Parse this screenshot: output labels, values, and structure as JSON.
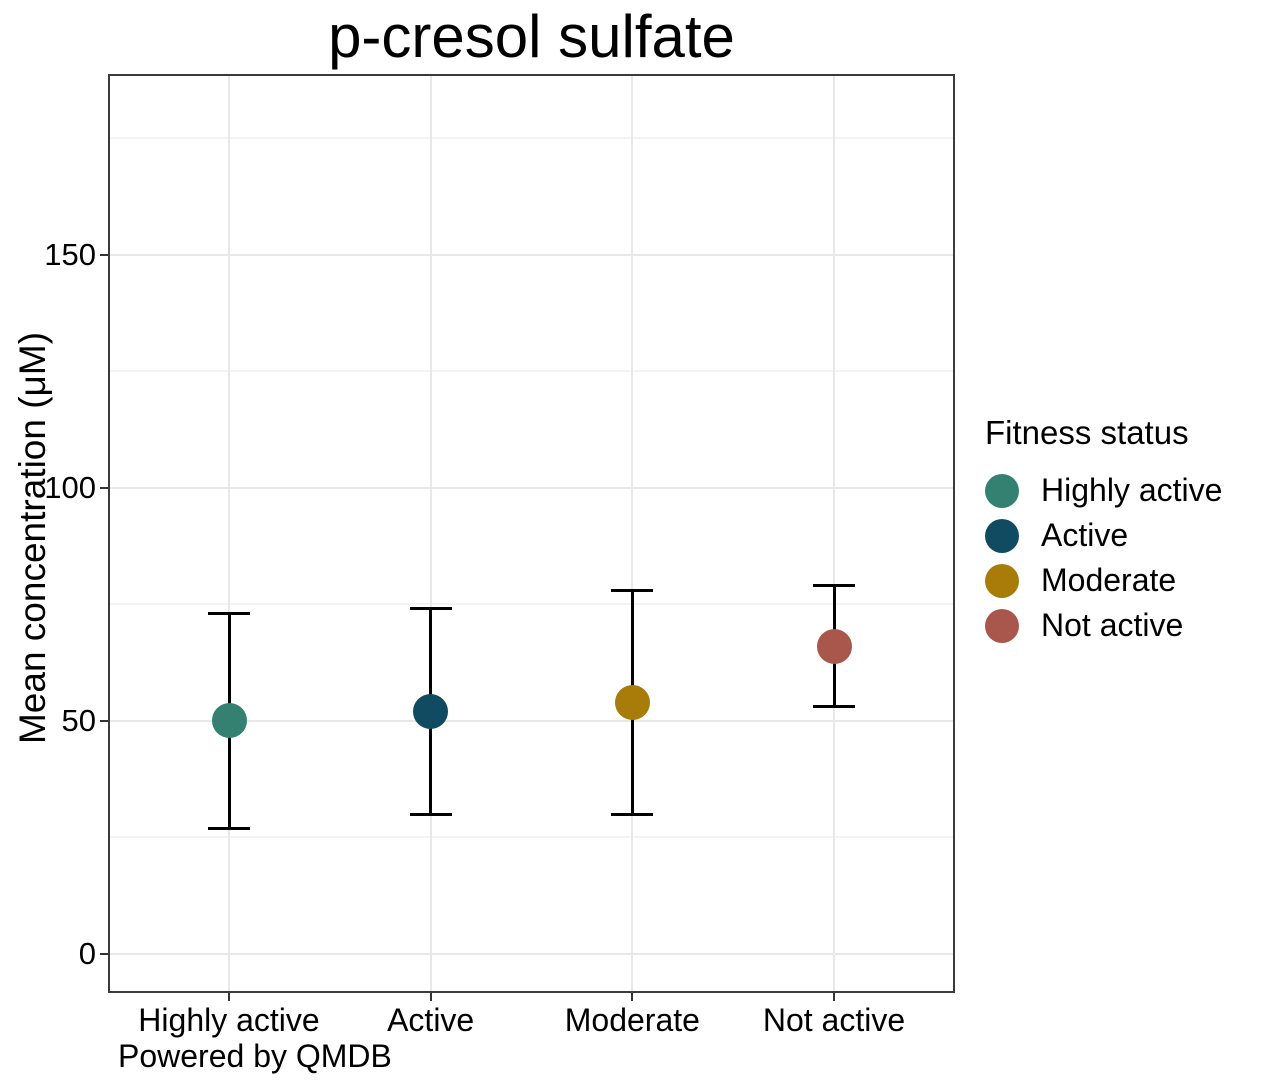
{
  "chart_data": {
    "type": "scatter",
    "subtype": "point-with-errorbar",
    "title": "p-cresol sulfate",
    "xlabel": "",
    "ylabel": "Mean concentration (μM)",
    "caption": "Powered by QMDB",
    "categories": [
      "Highly active",
      "Active",
      "Moderate",
      "Not active"
    ],
    "series": [
      {
        "name": "Highly active",
        "mean": 50,
        "lower": 27,
        "upper": 73,
        "color": "#348172"
      },
      {
        "name": "Active",
        "mean": 52,
        "lower": 30,
        "upper": 74,
        "color": "#104B61"
      },
      {
        "name": "Moderate",
        "mean": 54,
        "lower": 30,
        "upper": 78,
        "color": "#A87C09"
      },
      {
        "name": "Not active",
        "mean": 66,
        "lower": 53,
        "upper": 79,
        "color": "#A9574C"
      }
    ],
    "y_ticks": [
      0,
      50,
      100,
      150
    ],
    "y_minor_ticks": [
      25,
      75,
      125,
      175
    ],
    "ylim": [
      -8.4,
      188.8
    ],
    "grid": {
      "on": true,
      "major_color": "#E8E8E8",
      "minor_color": "#F3F3F3",
      "vertical_major": true
    },
    "legend": {
      "title": "Fitness status",
      "position": "right",
      "entries": [
        {
          "label": "Highly active",
          "color": "#348172"
        },
        {
          "label": "Active",
          "color": "#104B61"
        },
        {
          "label": "Moderate",
          "color": "#A87C09"
        },
        {
          "label": "Not active",
          "color": "#A9574C"
        }
      ]
    },
    "colors": {
      "errorbar": "#000000",
      "panel_border": "#3B3B3B",
      "tick": "#333333",
      "text": "#000000",
      "background": "#FFFFFF"
    }
  }
}
